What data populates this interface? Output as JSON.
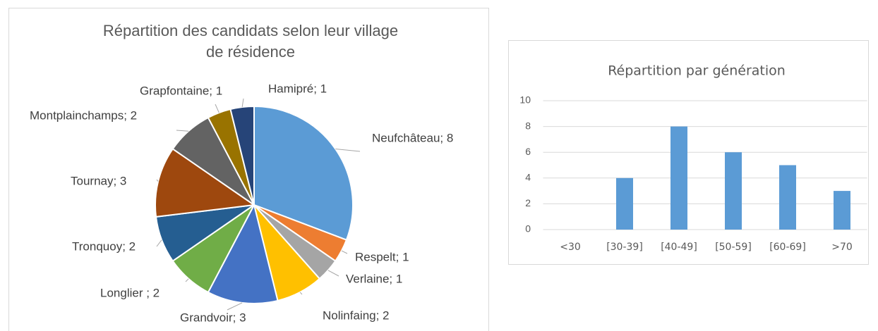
{
  "chart_data": [
    {
      "type": "pie",
      "title": [
        "Répartition des candidats selon leur village",
        "de résidence"
      ],
      "categories": [
        "Neufchâteau",
        "Respelt",
        "Verlaine",
        "Nolinfaing",
        "Grandvoir",
        "Longlier ",
        "Tronquoy",
        "Tournay",
        "Montplainchamps",
        "Grapfontaine",
        "Hamipré"
      ],
      "values": [
        8,
        1,
        1,
        2,
        3,
        2,
        2,
        3,
        2,
        1,
        1
      ],
      "value_labels": [
        "Neufchâteau; 8",
        "Respelt; 1",
        "Verlaine; 1",
        "Nolinfaing; 2",
        "Grandvoir; 3",
        "Longlier ; 2",
        "Tronquoy; 2",
        "Tournay; 3",
        "Montplainchamps; 2",
        "Grapfontaine; 1",
        "Hamipré; 1"
      ],
      "colors": [
        "#5b9bd5",
        "#ed7d31",
        "#a5a5a5",
        "#ffc000",
        "#4472c4",
        "#70ad47",
        "#255e91",
        "#9e480e",
        "#636363",
        "#997300",
        "#264478"
      ]
    },
    {
      "type": "bar",
      "title": "Répartition par génération",
      "categories": [
        "<30",
        "[30-39]",
        "[40-49]",
        "[50-59]",
        "[60-69]",
        ">70"
      ],
      "values": [
        0,
        4,
        8,
        6,
        5,
        3
      ],
      "color": "#5b9bd5",
      "ylim": [
        0,
        10
      ],
      "yticks": [
        0,
        2,
        4,
        6,
        8,
        10
      ],
      "grid": true
    }
  ]
}
